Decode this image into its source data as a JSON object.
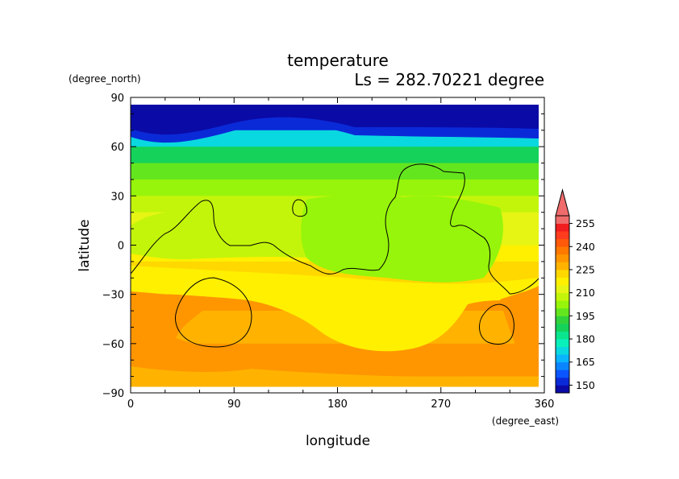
{
  "chart_data": {
    "type": "heatmap",
    "title": "temperature",
    "subtitle": "Ls = 282.70221 degree",
    "xlabel": "longitude",
    "ylabel": "latitude",
    "xunit": "(degree_east)",
    "yunit": "(degree_north)",
    "xlim": [
      0,
      360
    ],
    "ylim": [
      -90,
      90
    ],
    "xticks": [
      "0",
      "90",
      "180",
      "270",
      "360"
    ],
    "yticks": [
      "90",
      "60",
      "30",
      "0",
      "−30",
      "−60",
      "−90"
    ],
    "colorbar": {
      "levels": [
        145,
        150,
        155,
        160,
        165,
        170,
        175,
        180,
        185,
        190,
        195,
        200,
        205,
        210,
        215,
        220,
        225,
        230,
        235,
        240,
        245,
        250,
        255,
        260
      ],
      "colors": [
        "#0a0aa6",
        "#0a2ad8",
        "#0a55ff",
        "#0a85ff",
        "#0ab4ff",
        "#0ad8e0",
        "#0af0bb",
        "#0ae68e",
        "#14d25a",
        "#32d23c",
        "#64e61e",
        "#96f50a",
        "#c3f50a",
        "#e6f514",
        "#fff000",
        "#ffd800",
        "#ffb300",
        "#ff9600",
        "#ff7800",
        "#ff5a0a",
        "#ff3c1e",
        "#f01e1e",
        "#f06b6b"
      ],
      "tick_labels": [
        "150",
        "165",
        "180",
        "195",
        "210",
        "225",
        "240",
        "255"
      ],
      "extend": "max"
    },
    "field_note_lat_from_north_to_south_values_K": [
      {
        "lat": 85,
        "value": 147
      },
      {
        "lat": 75,
        "value": 150
      },
      {
        "lat": 65,
        "value": 170
      },
      {
        "lat": 55,
        "value": 185
      },
      {
        "lat": 45,
        "value": 195
      },
      {
        "lat": 35,
        "value": 202
      },
      {
        "lat": 25,
        "value": 207
      },
      {
        "lat": 15,
        "value": 210
      },
      {
        "lat": 5,
        "value": 212
      },
      {
        "lat": -5,
        "value": 215
      },
      {
        "lat": -15,
        "value": 220
      },
      {
        "lat": -25,
        "value": 222
      },
      {
        "lat": -35,
        "value": 230
      },
      {
        "lat": -45,
        "value": 228
      },
      {
        "lat": -55,
        "value": 228
      },
      {
        "lat": -65,
        "value": 230
      },
      {
        "lat": -75,
        "value": 230
      },
      {
        "lat": -85,
        "value": 228
      }
    ],
    "grid": false,
    "legend": "colorbar right"
  }
}
